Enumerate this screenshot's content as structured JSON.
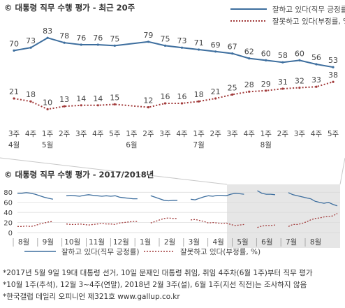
{
  "colors": {
    "approve": "#3d6e9e",
    "disapprove": "#a23b3b",
    "axis_text": "#444444",
    "gray_band": "#e6e6e6",
    "grid": "#d8d8d8"
  },
  "chart_data": [
    {
      "type": "line",
      "title": "© 대통령 직무 수행 평가 - 최근 20주",
      "x_labels": [
        "3주\n4월",
        "4주",
        "1주\n5월",
        "2주",
        "3주",
        "4주",
        "5주",
        "1주\n6월",
        "2주",
        "3주",
        "4주",
        "1주\n7월",
        "2주",
        "3주",
        "4주",
        "1주\n8월",
        "2주",
        "3주",
        "4주",
        "5주"
      ],
      "x_label_top": [
        "3주",
        "4주",
        "1주",
        "2주",
        "3주",
        "4주",
        "5주",
        "1주",
        "2주",
        "3주",
        "4주",
        "1주",
        "2주",
        "3주",
        "4주",
        "1주",
        "2주",
        "3주",
        "4주",
        "5주"
      ],
      "x_label_month": [
        "4월",
        "",
        "5월",
        "",
        "",
        "",
        "",
        "6월",
        "",
        "",
        "",
        "7월",
        "",
        "",
        "",
        "8월",
        "",
        "",
        "",
        ""
      ],
      "series": [
        {
          "name": "잘하고 있다(직무 긍정률)",
          "values": [
            70,
            73,
            83,
            78,
            76,
            76,
            75,
            null,
            79,
            75,
            73,
            71,
            69,
            67,
            62,
            60,
            58,
            60,
            56,
            53
          ],
          "labels": [
            "70",
            "73",
            "83",
            "78",
            "76",
            "76",
            "75",
            "",
            "79",
            "75",
            "73",
            "71",
            "69",
            "67",
            "62",
            "60",
            "58",
            "60",
            "56",
            "53"
          ]
        },
        {
          "name": "잘못하고 있다(부정률, %)",
          "values": [
            21,
            18,
            10,
            13,
            14,
            14,
            15,
            null,
            12,
            16,
            16,
            18,
            21,
            25,
            28,
            29,
            31,
            32,
            33,
            38
          ],
          "labels": [
            "21",
            "18",
            "10",
            "13",
            "14",
            "14",
            "15",
            "",
            "12",
            "16",
            "16",
            "18",
            "21",
            "25",
            "28",
            "29",
            "31",
            "32",
            "33",
            "38"
          ]
        }
      ],
      "legend": [
        "잘하고 있다(직무 긍정률)",
        "잘못하고 있다(부정률, %)"
      ],
      "legend_position": "top-right"
    },
    {
      "type": "line",
      "title": "© 대통령 직무 수행 평가 - 2017/2018년",
      "y_ticks": [
        "80",
        "60",
        "40",
        "20",
        "0"
      ],
      "ylim": [
        0,
        90
      ],
      "x_ticks": [
        "8월",
        "9월",
        "10월",
        "11월",
        "12월",
        "1월",
        "2월",
        "3월",
        "4월",
        "5월",
        "6월",
        "7월",
        "8월"
      ],
      "shaded_region": "5월–8월 (최근 20주)",
      "series": [
        {
          "name": "잘하고 있다(직무 긍정률)",
          "segments": [
            [
              78,
              78,
              79,
              78,
              76,
              73,
              70,
              68,
              66
            ],
            [
              73,
              74,
              73,
              72,
              74,
              75,
              74,
              73,
              72,
              73,
              72,
              73,
              70,
              69,
              68,
              67,
              67
            ],
            [
              73,
              70,
              67,
              64,
              63,
              64,
              64
            ],
            [
              66,
              65,
              68,
              71,
              73,
              72,
              74,
              74,
              73,
              76,
              78,
              77,
              76
            ],
            [
              83,
              78,
              76,
              76,
              75
            ],
            [
              79,
              75,
              73,
              71,
              69,
              67,
              62,
              60,
              58,
              60,
              56,
              53
            ]
          ]
        },
        {
          "name": "잘못하고 있다(부정률, %)",
          "segments": [
            [
              12,
              12,
              13,
              12,
              14,
              17,
              19,
              21,
              22
            ],
            [
              17,
              16,
              16,
              17,
              16,
              15,
              16,
              17,
              18,
              17,
              17,
              16,
              19,
              20,
              21,
              22,
              22
            ],
            [
              19,
              22,
              25,
              28,
              29,
              28,
              28
            ],
            [
              25,
              26,
              24,
              22,
              19,
              20,
              19,
              18,
              19,
              16,
              14,
              15,
              16
            ],
            [
              10,
              13,
              14,
              14,
              15
            ],
            [
              12,
              16,
              16,
              18,
              21,
              25,
              28,
              29,
              31,
              32,
              33,
              38
            ]
          ]
        }
      ],
      "legend": [
        "잘하고 있다(직무 긍정률)",
        "잘못하고 있다(부정률, %)"
      ]
    }
  ],
  "notes": [
    "*2017년 5월 9일 19대 대통령 선거, 10일 문재인 대통령 취임, 취임 4주차(6월 1주)부터 직무 평가",
    "*10월 1주(추석), 12월 3~4주(연말), 2018년 2월 3주(설), 6월 1주(지선 직전)는 조사하지 않음",
    "*한국갤럽 데일리 오피니언 제321호 www.gallup.co.kr"
  ]
}
